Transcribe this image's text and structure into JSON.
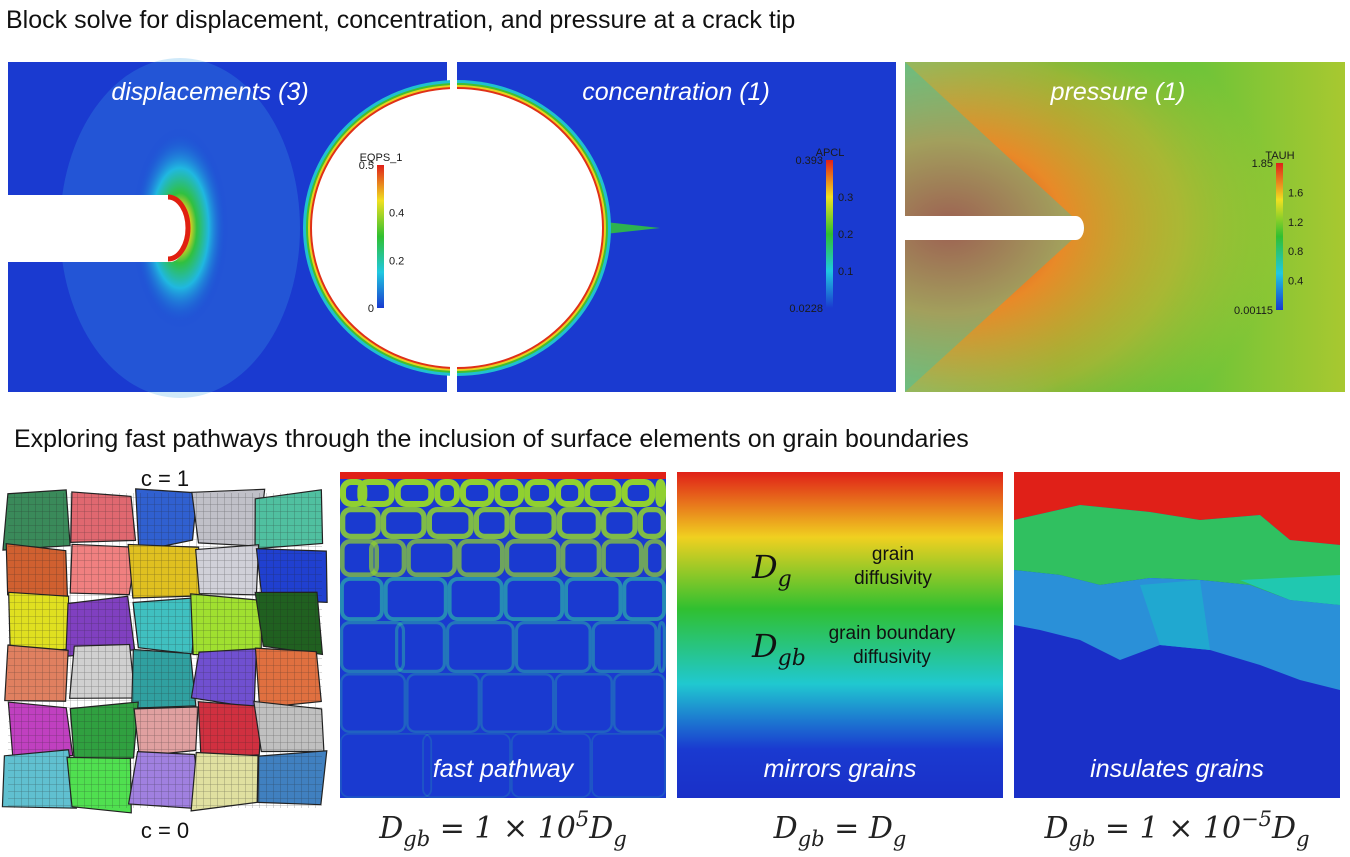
{
  "title_top": "Block solve for displacement, concentration, and pressure at a crack tip",
  "top_panels": [
    {
      "label": "displacements (3)",
      "colorbar": {
        "name": "EQPS_1",
        "ticks": [
          "0.5",
          "0.4",
          "0.2",
          "0"
        ]
      }
    },
    {
      "label": "concentration (1)",
      "colorbar": {
        "name": "APCL",
        "ticks": [
          "0.393",
          "0.3",
          "0.2",
          "0.1",
          "0.0228"
        ]
      }
    },
    {
      "label": "pressure (1)",
      "colorbar": {
        "name": "TAUH",
        "ticks": [
          "1.85",
          "1.6",
          "1.2",
          "0.8",
          "0.4",
          "0.00115"
        ]
      }
    }
  ],
  "title_bottom": "Exploring fast pathways through the inclusion of surface elements on grain boundaries",
  "mesh": {
    "top_label": "c = 1",
    "bottom_label": "c = 0"
  },
  "annotations": [
    {
      "symbol": [
        {
          "text": "D"
        },
        {
          "text": "g",
          "pos": "sub"
        }
      ],
      "lines": [
        "grain",
        "diffusivity"
      ]
    },
    {
      "symbol": [
        {
          "text": "D"
        },
        {
          "text": "gb",
          "pos": "sub"
        }
      ],
      "lines": [
        "grain boundary",
        "diffusivity"
      ]
    }
  ],
  "bottom_panels": [
    {
      "label": "fast pathway",
      "equation": [
        {
          "text": "D"
        },
        {
          "text": "gb",
          "pos": "sub"
        },
        {
          "text": " = 1 × 10"
        },
        {
          "text": "5",
          "pos": "sup"
        },
        {
          "text": "D"
        },
        {
          "text": "g",
          "pos": "sub"
        }
      ]
    },
    {
      "label": "mirrors grains",
      "equation": [
        {
          "text": "D"
        },
        {
          "text": "gb",
          "pos": "sub"
        },
        {
          "text": " = D"
        },
        {
          "text": "g",
          "pos": "sub"
        }
      ]
    },
    {
      "label": "insulates grains",
      "equation": [
        {
          "text": "D"
        },
        {
          "text": "gb",
          "pos": "sub"
        },
        {
          "text": " = 1 × 10"
        },
        {
          "text": "−5",
          "pos": "sup"
        },
        {
          "text": "D"
        },
        {
          "text": "g",
          "pos": "sub"
        }
      ]
    }
  ]
}
